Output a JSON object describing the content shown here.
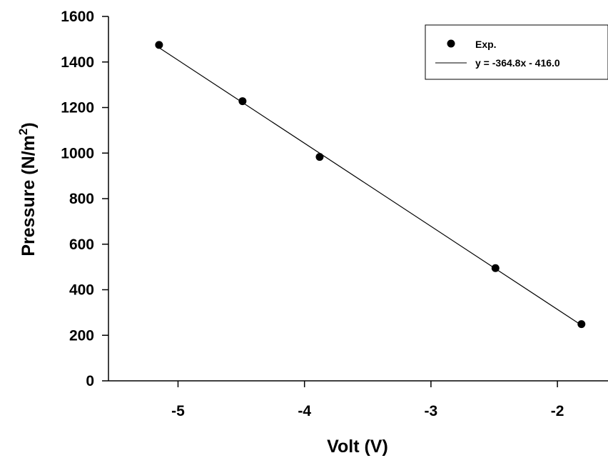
{
  "chart_data": {
    "type": "scatter",
    "xlabel": "Volt (V)",
    "ylabel": "Pressure (N/m",
    "ylabel_superscript": "2",
    "ylabel_suffix": ")",
    "xlim": [
      -5.55,
      -1.6
    ],
    "ylim": [
      0,
      1600
    ],
    "x_ticks": [
      -5,
      -4,
      -3,
      -2
    ],
    "x_tick_labels": [
      "-5",
      "-4",
      "-3",
      "-2"
    ],
    "y_ticks": [
      0,
      200,
      400,
      600,
      800,
      1000,
      1200,
      1400,
      1600
    ],
    "y_tick_labels": [
      "0",
      "200",
      "400",
      "600",
      "800",
      "1000",
      "1200",
      "1400",
      "1600"
    ],
    "grid": false,
    "legend_position": "top-right",
    "series": [
      {
        "name": "Exp.",
        "kind": "points",
        "color": "#000000",
        "x": [
          -5.15,
          -4.49,
          -3.88,
          -2.49,
          -1.81
        ],
        "y": [
          1475,
          1228,
          983,
          495,
          249
        ]
      },
      {
        "name": "y = -364.8x - 416.0",
        "kind": "fit-line",
        "color": "#000000",
        "slope": -364.8,
        "intercept": -416.0,
        "x_range": [
          -5.15,
          -1.81
        ]
      }
    ]
  }
}
